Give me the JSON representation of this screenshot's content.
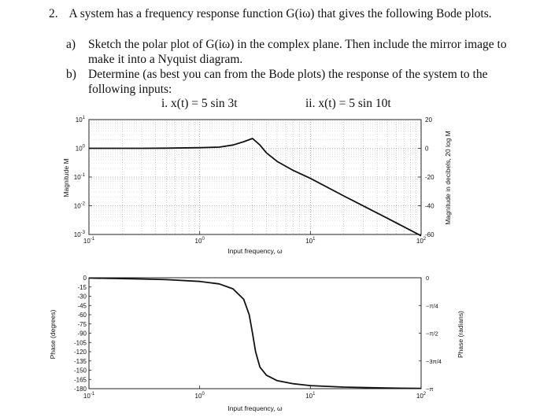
{
  "problem": {
    "number": "2.",
    "intro": "A system has a frequency response function G(iω) that gives the following Bode plots.",
    "parts": [
      {
        "label": "a)",
        "line1": "Sketch the polar plot of G(iω) in the complex plane. Then include the mirror image to",
        "line2": "make it into a Nyquist diagram."
      },
      {
        "label": "b)",
        "line1": "Determine (as best you can from the Bode plots) the response of the system to the",
        "line2": "following inputs:"
      }
    ],
    "inputs": [
      "i. x(t) = 5 sin 3t",
      "ii. x(t) = 5 sin 10t"
    ]
  },
  "chart_data": [
    {
      "type": "line",
      "title": "",
      "xlabel": "Input frequency, ω",
      "ylabel": "Magnitude M",
      "ylabel_right": "Magnitude in decibels, 20 log M",
      "x_scale": "log",
      "y_scale": "log",
      "xlim": [
        0.1,
        100
      ],
      "ylim": [
        0.001,
        10
      ],
      "x_ticks": [
        "10",
        "10",
        "10",
        "10"
      ],
      "x_tick_exponents": [
        "-1",
        "0",
        "1",
        "2"
      ],
      "y_ticks": [
        "10",
        "10",
        "10",
        "10",
        "10"
      ],
      "y_tick_exponents": [
        "1",
        "0",
        "-1",
        "-2",
        "-3"
      ],
      "y_right_ticks": [
        "20",
        "0",
        "-20",
        "-40",
        "-60"
      ],
      "grid": true,
      "series": [
        {
          "x": [
            0.1,
            0.3,
            0.5,
            1,
            1.5,
            2,
            2.5,
            3,
            3.5,
            4,
            5,
            7,
            10,
            20,
            50,
            100
          ],
          "y": [
            1.0,
            1.0,
            1.01,
            1.05,
            1.1,
            1.3,
            1.7,
            2.2,
            1.3,
            0.7,
            0.35,
            0.17,
            0.09,
            0.022,
            0.0036,
            0.0009
          ]
        }
      ]
    },
    {
      "type": "line",
      "title": "",
      "xlabel": "Input frequency, ω",
      "ylabel": "Phase (degrees)",
      "ylabel_right": "Phase (radians)",
      "x_scale": "log",
      "xlim": [
        0.1,
        100
      ],
      "ylim": [
        -180,
        0
      ],
      "x_ticks": [
        "10",
        "10",
        "10",
        "10"
      ],
      "x_tick_exponents": [
        "-1",
        "0",
        "1",
        "2"
      ],
      "y_ticks": [
        "0",
        "-15",
        "-30",
        "-45",
        "-60",
        "-75",
        "-90",
        "-105",
        "-120",
        "-135",
        "-150",
        "-165",
        "-180"
      ],
      "y_right_ticks": [
        "0",
        "−π/4",
        "−π/2",
        "−3π/4",
        "−π"
      ],
      "grid": false,
      "series": [
        {
          "x": [
            0.1,
            0.3,
            0.5,
            1,
            1.5,
            2,
            2.5,
            2.8,
            3,
            3.2,
            3.5,
            4,
            5,
            7,
            10,
            20,
            50,
            100
          ],
          "y": [
            -0.5,
            -2,
            -3,
            -6,
            -10,
            -18,
            -35,
            -60,
            -90,
            -120,
            -145,
            -158,
            -167,
            -172,
            -175,
            -177.5,
            -179,
            -179.5
          ]
        }
      ]
    }
  ]
}
